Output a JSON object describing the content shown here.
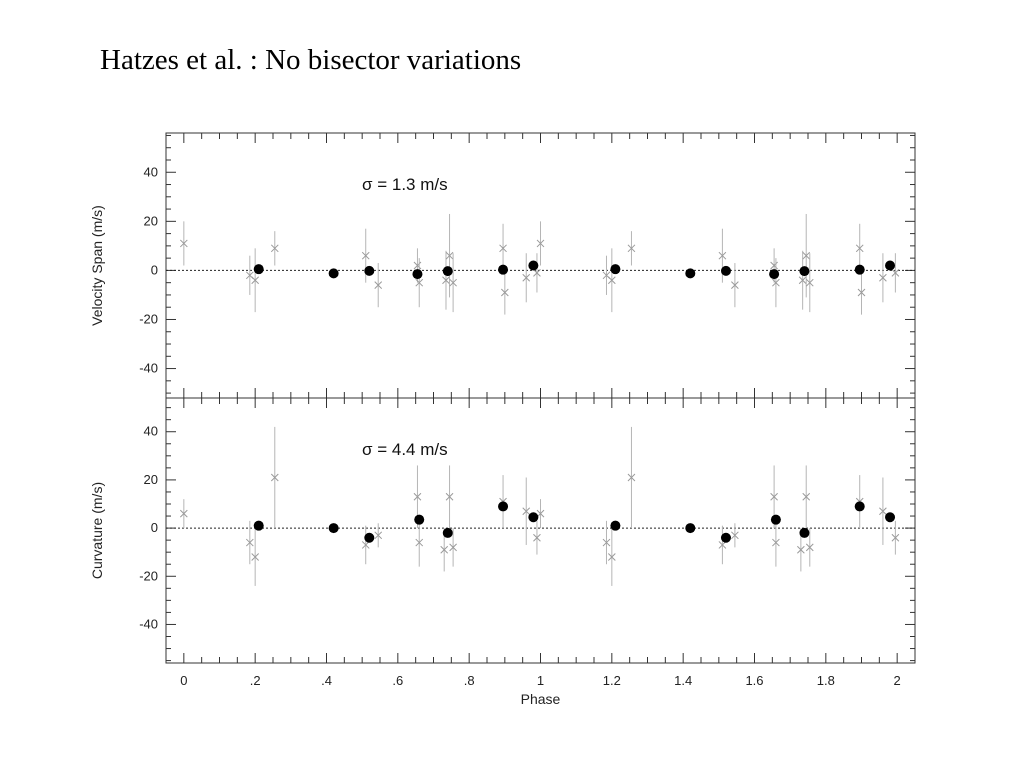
{
  "slide": {
    "title": "Hatzes et al. : No bisector variations"
  },
  "chart_data": [
    {
      "type": "scatter",
      "panel": "top",
      "annotation": "σ = 1.3 m/s",
      "ylabel": "Velocity Span (m/s)",
      "xlabel": "",
      "xlim": [
        -0.05,
        2.05
      ],
      "ylim": [
        -52,
        56
      ],
      "yticks": [
        -40,
        -20,
        0,
        20,
        40
      ],
      "ytick_labels": [
        "-40",
        "-20",
        "0",
        "20",
        "40"
      ],
      "zero_line": "dotted",
      "series": [
        {
          "marker": "filled-circle",
          "points": [
            {
              "x": 0.21,
              "y": 0.5
            },
            {
              "x": 0.42,
              "y": -1.2
            },
            {
              "x": 0.52,
              "y": -0.2
            },
            {
              "x": 0.655,
              "y": -1.5
            },
            {
              "x": 0.74,
              "y": -0.3
            },
            {
              "x": 0.895,
              "y": 0.3
            },
            {
              "x": 0.98,
              "y": 2.0
            },
            {
              "x": 1.21,
              "y": 0.5
            },
            {
              "x": 1.42,
              "y": -1.2
            },
            {
              "x": 1.52,
              "y": -0.2
            },
            {
              "x": 1.655,
              "y": -1.5
            },
            {
              "x": 1.74,
              "y": -0.3
            },
            {
              "x": 1.895,
              "y": 0.3
            },
            {
              "x": 1.98,
              "y": 2.0
            }
          ]
        },
        {
          "marker": "cross",
          "points": [
            {
              "x": 0.0,
              "y": 11,
              "err": 9
            },
            {
              "x": 0.185,
              "y": -2,
              "err": 8
            },
            {
              "x": 0.2,
              "y": -4,
              "err": 13
            },
            {
              "x": 0.255,
              "y": 9,
              "err": 7
            },
            {
              "x": 0.51,
              "y": 6,
              "err": 11
            },
            {
              "x": 0.545,
              "y": -6,
              "err": 9
            },
            {
              "x": 0.655,
              "y": 2,
              "err": 7
            },
            {
              "x": 0.66,
              "y": -5,
              "err": 10
            },
            {
              "x": 0.735,
              "y": -4,
              "err": 12
            },
            {
              "x": 0.745,
              "y": 6,
              "err": 17
            },
            {
              "x": 0.755,
              "y": -5,
              "err": 12
            },
            {
              "x": 0.895,
              "y": 9,
              "err": 10
            },
            {
              "x": 0.9,
              "y": -9,
              "err": 9
            },
            {
              "x": 0.96,
              "y": -3,
              "err": 10
            },
            {
              "x": 0.99,
              "y": -1,
              "err": 8
            },
            {
              "x": 1.0,
              "y": 11,
              "err": 9
            },
            {
              "x": 1.185,
              "y": -2,
              "err": 8
            },
            {
              "x": 1.2,
              "y": -4,
              "err": 13
            },
            {
              "x": 1.255,
              "y": 9,
              "err": 7
            },
            {
              "x": 1.51,
              "y": 6,
              "err": 11
            },
            {
              "x": 1.545,
              "y": -6,
              "err": 9
            },
            {
              "x": 1.655,
              "y": 2,
              "err": 7
            },
            {
              "x": 1.66,
              "y": -5,
              "err": 10
            },
            {
              "x": 1.735,
              "y": -4,
              "err": 12
            },
            {
              "x": 1.745,
              "y": 6,
              "err": 17
            },
            {
              "x": 1.755,
              "y": -5,
              "err": 12
            },
            {
              "x": 1.895,
              "y": 9,
              "err": 10
            },
            {
              "x": 1.9,
              "y": -9,
              "err": 9
            },
            {
              "x": 1.96,
              "y": -3,
              "err": 10
            },
            {
              "x": 1.995,
              "y": -1,
              "err": 8
            }
          ]
        }
      ]
    },
    {
      "type": "scatter",
      "panel": "bottom",
      "annotation": "σ = 4.4 m/s",
      "ylabel": "Curvature (m/s)",
      "xlabel": "Phase",
      "xlim": [
        -0.05,
        2.05
      ],
      "ylim": [
        -56,
        54
      ],
      "yticks": [
        -40,
        -20,
        0,
        20,
        40
      ],
      "ytick_labels": [
        "-40",
        "-20",
        "0",
        "20",
        "40"
      ],
      "xticks": [
        0,
        0.2,
        0.4,
        0.6,
        0.8,
        1.0,
        1.2,
        1.4,
        1.6,
        1.8,
        2.0
      ],
      "xtick_labels": [
        "0",
        ".2",
        ".4",
        ".6",
        ".8",
        "1",
        "1.2",
        "1.4",
        "1.6",
        "1.8",
        "2"
      ],
      "zero_line": "dotted",
      "series": [
        {
          "marker": "filled-circle",
          "points": [
            {
              "x": 0.21,
              "y": 1.0
            },
            {
              "x": 0.42,
              "y": 0.0
            },
            {
              "x": 0.52,
              "y": -4.0
            },
            {
              "x": 0.66,
              "y": 3.5
            },
            {
              "x": 0.74,
              "y": -2.0
            },
            {
              "x": 0.895,
              "y": 9.0
            },
            {
              "x": 0.98,
              "y": 4.5
            },
            {
              "x": 1.21,
              "y": 1.0
            },
            {
              "x": 1.42,
              "y": 0.0
            },
            {
              "x": 1.52,
              "y": -4.0
            },
            {
              "x": 1.66,
              "y": 3.5
            },
            {
              "x": 1.74,
              "y": -2.0
            },
            {
              "x": 1.895,
              "y": 9.0
            },
            {
              "x": 1.98,
              "y": 4.5
            }
          ]
        },
        {
          "marker": "cross",
          "points": [
            {
              "x": 0.0,
              "y": 6,
              "err": 6
            },
            {
              "x": 0.185,
              "y": -6,
              "err": 9
            },
            {
              "x": 0.2,
              "y": -12,
              "err": 12
            },
            {
              "x": 0.255,
              "y": 21,
              "err": 21
            },
            {
              "x": 0.51,
              "y": -7,
              "err": 8
            },
            {
              "x": 0.545,
              "y": -3,
              "err": 5
            },
            {
              "x": 0.655,
              "y": 13,
              "err": 13
            },
            {
              "x": 0.66,
              "y": -6,
              "err": 10
            },
            {
              "x": 0.73,
              "y": -9,
              "err": 9
            },
            {
              "x": 0.745,
              "y": 13,
              "err": 13
            },
            {
              "x": 0.755,
              "y": -8,
              "err": 8
            },
            {
              "x": 0.895,
              "y": 11,
              "err": 11
            },
            {
              "x": 0.96,
              "y": 7,
              "err": 14
            },
            {
              "x": 0.99,
              "y": -4,
              "err": 7
            },
            {
              "x": 1.0,
              "y": 6,
              "err": 6
            },
            {
              "x": 1.185,
              "y": -6,
              "err": 9
            },
            {
              "x": 1.2,
              "y": -12,
              "err": 12
            },
            {
              "x": 1.255,
              "y": 21,
              "err": 21
            },
            {
              "x": 1.51,
              "y": -7,
              "err": 8
            },
            {
              "x": 1.545,
              "y": -3,
              "err": 5
            },
            {
              "x": 1.655,
              "y": 13,
              "err": 13
            },
            {
              "x": 1.66,
              "y": -6,
              "err": 10
            },
            {
              "x": 1.73,
              "y": -9,
              "err": 9
            },
            {
              "x": 1.745,
              "y": 13,
              "err": 13
            },
            {
              "x": 1.755,
              "y": -8,
              "err": 8
            },
            {
              "x": 1.895,
              "y": 11,
              "err": 11
            },
            {
              "x": 1.96,
              "y": 7,
              "err": 14
            },
            {
              "x": 1.995,
              "y": -4,
              "err": 7
            }
          ]
        }
      ]
    }
  ]
}
